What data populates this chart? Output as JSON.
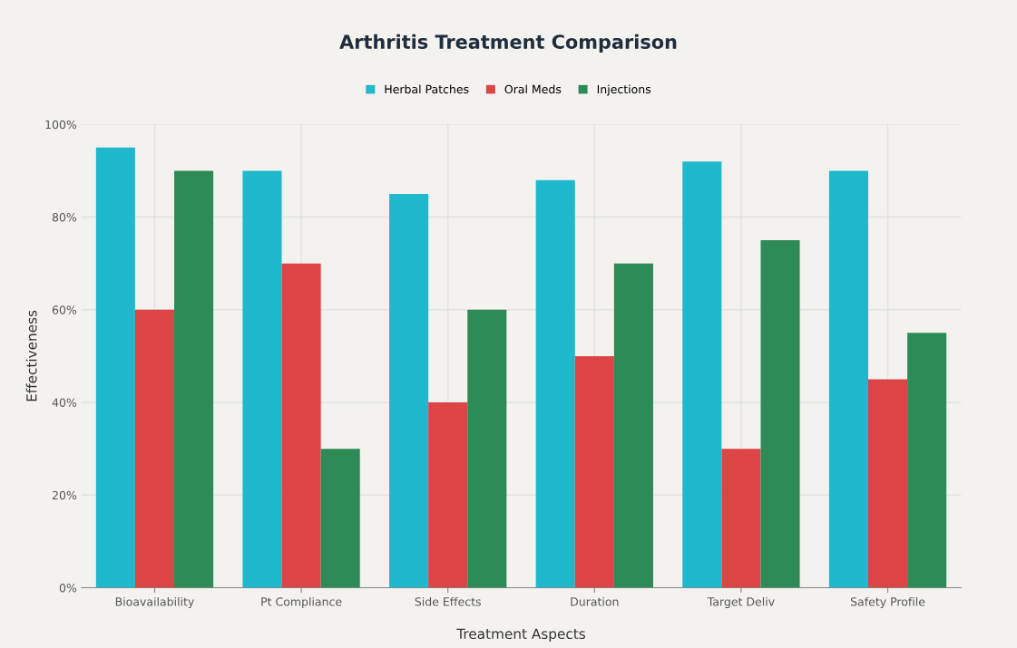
{
  "chart_data": {
    "type": "bar",
    "title": "Arthritis Treatment Comparison",
    "xlabel": "Treatment Aspects",
    "ylabel": "Effectiveness",
    "categories": [
      "Bioavailability",
      "Pt Compliance",
      "Side Effects",
      "Duration",
      "Target Deliv",
      "Safety Profile"
    ],
    "series": [
      {
        "name": "Herbal Patches",
        "color": "#1fb8cd",
        "values": [
          95,
          90,
          85,
          88,
          92,
          90
        ]
      },
      {
        "name": "Oral Meds",
        "color": "#db4545",
        "values": [
          60,
          70,
          40,
          50,
          30,
          45
        ]
      },
      {
        "name": "Injections",
        "color": "#2e8b57",
        "values": [
          90,
          30,
          60,
          70,
          75,
          55
        ]
      }
    ],
    "ylim": [
      0,
      100
    ],
    "yticks": [
      {
        "value": 0,
        "label": "0%"
      },
      {
        "value": 20,
        "label": "20%"
      },
      {
        "value": 40,
        "label": "40%"
      },
      {
        "value": 60,
        "label": "60%"
      },
      {
        "value": 80,
        "label": "80%"
      },
      {
        "value": 100,
        "label": "100%"
      }
    ],
    "grid": true,
    "legend": "top"
  }
}
